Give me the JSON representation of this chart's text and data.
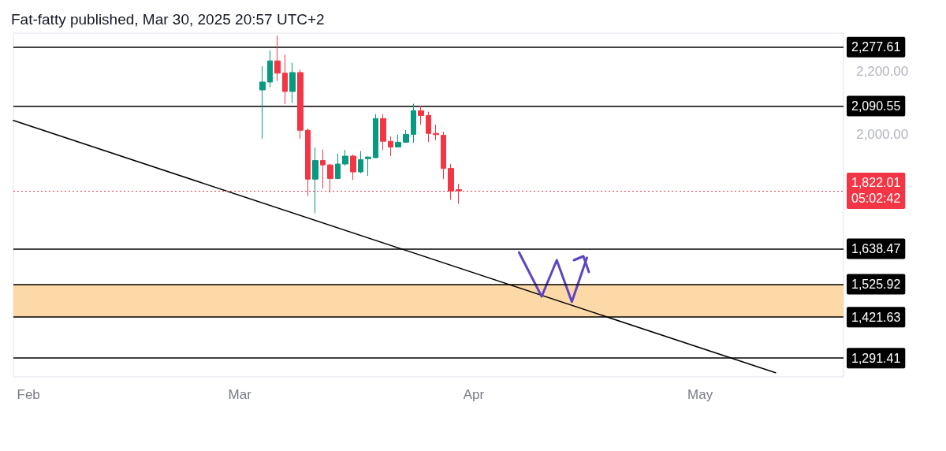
{
  "chart_data": {
    "type": "candlestick",
    "title": "Fat-fatty published, Mar 30, 2025 20:57 UTC+2",
    "xlim": [
      "2025-01-30",
      "2025-05-20"
    ],
    "xticks": [
      {
        "value": "2025-02-01",
        "label": "Feb"
      },
      {
        "value": "2025-03-01",
        "label": "Mar"
      },
      {
        "value": "2025-04-01",
        "label": "Apr"
      },
      {
        "value": "2025-05-01",
        "label": "May"
      }
    ],
    "ylim": [
      1232,
      2322
    ],
    "yticks": [
      {
        "value": 2000,
        "label": "2,000.00"
      },
      {
        "value": 2200,
        "label": "2,200.00"
      }
    ],
    "grid": false,
    "series": [
      {
        "x": [
          "2025-03-04",
          "2025-03-05",
          "2025-03-06",
          "2025-03-07",
          "2025-03-08",
          "2025-03-09",
          "2025-03-10",
          "2025-03-11",
          "2025-03-12",
          "2025-03-13",
          "2025-03-14",
          "2025-03-15",
          "2025-03-16",
          "2025-03-17",
          "2025-03-18",
          "2025-03-19",
          "2025-03-20",
          "2025-03-21",
          "2025-03-22",
          "2025-03-23",
          "2025-03-24",
          "2025-03-25",
          "2025-03-26",
          "2025-03-27",
          "2025-03-28",
          "2025-03-29",
          "2025-03-30"
        ],
        "ohlc": [
          [
            2142,
            2217,
            1987,
            2167
          ],
          [
            2167,
            2267,
            2150,
            2234
          ],
          [
            2234,
            2314,
            2170,
            2195
          ],
          [
            2195,
            2254,
            2097,
            2137
          ],
          [
            2137,
            2228,
            2101,
            2197
          ],
          [
            2197,
            2206,
            1987,
            2014
          ],
          [
            2014,
            2020,
            1806,
            1859
          ],
          [
            1859,
            1959,
            1751,
            1918
          ],
          [
            1918,
            1953,
            1829,
            1904
          ],
          [
            1904,
            1908,
            1817,
            1861
          ],
          [
            1861,
            1940,
            1859,
            1907
          ],
          [
            1907,
            1952,
            1901,
            1932
          ],
          [
            1932,
            1937,
            1857,
            1882
          ],
          [
            1882,
            1948,
            1877,
            1921
          ],
          [
            1924,
            1931,
            1869,
            1929
          ],
          [
            1927,
            2065,
            1926,
            2051
          ],
          [
            2051,
            2065,
            1951,
            1979
          ],
          [
            1979,
            1994,
            1932,
            1961
          ],
          [
            1961,
            2000,
            1961,
            1976
          ],
          [
            1976,
            2015,
            1974,
            2001
          ],
          [
            2001,
            2098,
            1974,
            2076
          ],
          [
            2076,
            2092,
            2032,
            2061
          ],
          [
            2061,
            2073,
            1977,
            2004
          ],
          [
            2004,
            2032,
            1982,
            2000
          ],
          [
            1998,
            2009,
            1859,
            1893
          ],
          [
            1893,
            1907,
            1794,
            1821
          ],
          [
            1826,
            1844,
            1781,
            1822.01
          ]
        ],
        "colors": [
          "#089981",
          "#089981",
          "#f23645",
          "#f23645",
          "#089981",
          "#f23645",
          "#f23645",
          "#089981",
          "#f23645",
          "#f23645",
          "#089981",
          "#089981",
          "#f23645",
          "#089981",
          "#089981",
          "#089981",
          "#f23645",
          "#f23645",
          "#089981",
          "#089981",
          "#089981",
          "#f23645",
          "#f23645",
          "#f23645",
          "#f23645",
          "#f23645",
          "#f23645"
        ]
      },
      {
        "type": "line",
        "x": [
          "2025-01-30",
          "2025-05-11"
        ],
        "values": [
          2045,
          1245
        ],
        "color": "#000000"
      },
      {
        "type": "line",
        "x": [
          "2025-04-07",
          "2025-04-10",
          "2025-04-12",
          "2025-04-14",
          "2025-04-16"
        ],
        "values": [
          1627,
          1487,
          1602,
          1470,
          1610
        ],
        "color": "#5e44c4"
      }
    ],
    "ref_lines": [
      {
        "axis": "y",
        "value": 2277.61,
        "label": "2,277.61",
        "color": "#000000",
        "line_style": "solid"
      },
      {
        "axis": "y",
        "value": 2090.55,
        "label": "2,090.55",
        "color": "#000000",
        "line_style": "solid"
      },
      {
        "axis": "y",
        "value": 1822.01,
        "label": "1,822.01\n05:02:42",
        "color": "#f23645",
        "line_style": "dotted"
      },
      {
        "axis": "y",
        "value": 1638.47,
        "label": "1,638.47",
        "color": "#000000",
        "line_style": "solid"
      },
      {
        "axis": "y",
        "value": 1525.92,
        "label": "1,525.92",
        "color": "#000000",
        "line_style": "solid"
      },
      {
        "axis": "y",
        "value": 1421.63,
        "label": "1,421.63",
        "color": "#000000",
        "line_style": "solid"
      },
      {
        "axis": "y",
        "value": 1291.41,
        "label": "1,291.41",
        "color": "#000000",
        "line_style": "solid"
      }
    ],
    "bands": [
      {
        "axis": "y",
        "from": 1421.63,
        "to": 1525.92,
        "color": "#fdd9a8"
      }
    ]
  }
}
